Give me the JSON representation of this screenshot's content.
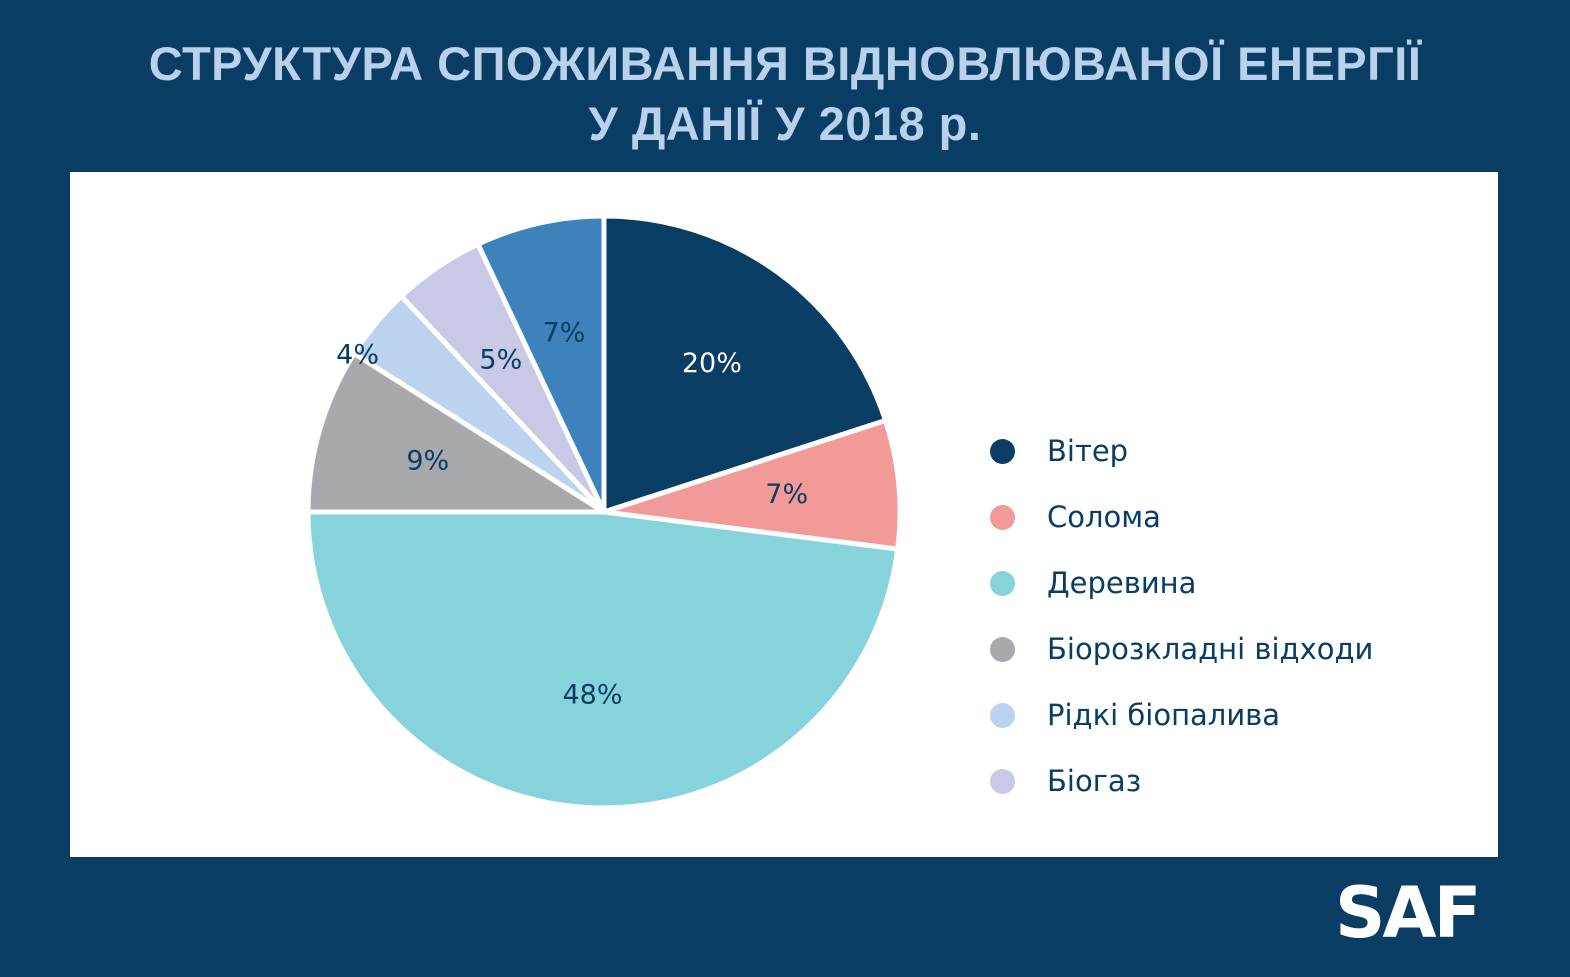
{
  "title": {
    "line1": "СТРУКТУРА СПОЖИВАННЯ ВІДНОВЛЮВАНОЇ ЕНЕРГІЇ",
    "line2": "У ДАНІЇ У 2018 р."
  },
  "logo": "SAF",
  "chart_data": {
    "type": "pie",
    "title": "СТРУКТУРА СПОЖИВАННЯ ВІДНОВЛЮВАНОЇ ЕНЕРГІЇ У ДАНІЇ У 2018 р.",
    "legend_position": "right",
    "start": "12 o'clock",
    "direction": "clockwise",
    "slices": [
      {
        "label": "Вітер",
        "value": 20,
        "display": "20%",
        "color": "#0a3d63",
        "label_color": "#ffffff"
      },
      {
        "label": "Солома",
        "value": 7,
        "display": "7%",
        "color": "#f29a98",
        "label_color": "#0a3d63"
      },
      {
        "label": "Деревина",
        "value": 48,
        "display": "48%",
        "color": "#87d3dc",
        "label_color": "#0a3d63"
      },
      {
        "label": "Біорозкладні відходи",
        "value": 9,
        "display": "9%",
        "color": "#a7a9ac",
        "label_color": "#0a3d63"
      },
      {
        "label": "Рідкі біопалива",
        "value": 4,
        "display": "4%",
        "color": "#bcd3ef",
        "label_color": "#0a3d63"
      },
      {
        "label": "Біогаз",
        "value": 5,
        "display": "5%",
        "color": "#c8c9e7",
        "label_color": "#0a3d63"
      },
      {
        "label": "",
        "value": 7,
        "display": "7%",
        "color": "#3d82ba",
        "label_color": "#0a3d63"
      }
    ]
  }
}
